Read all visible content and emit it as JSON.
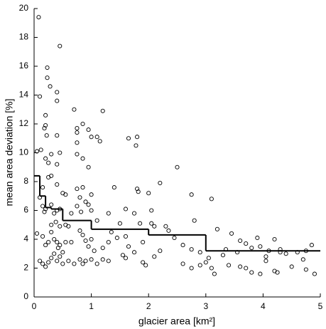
{
  "chart_data": {
    "type": "scatter",
    "xlabel": "glacier area [km²]",
    "ylabel": "mean area deviation [%]",
    "xlim": [
      0,
      5
    ],
    "xticks": [
      0,
      1,
      2,
      3,
      4,
      5
    ],
    "ylim": [
      0,
      20
    ],
    "yticks": [
      0,
      2,
      4,
      6,
      8,
      10,
      12,
      14,
      16,
      18,
      20
    ],
    "series": [
      {
        "type": "scatter",
        "color": "#000000",
        "x": [
          0.08,
          0.45,
          0.23,
          0.23,
          0.28,
          0.4,
          0.4,
          0.1,
          0.2,
          0.7,
          1.2,
          0.2,
          0.18,
          0.22,
          0.4,
          0.85,
          0.75,
          0.75,
          0.95,
          1.0,
          1.1,
          1.65,
          1.8,
          1.78,
          0.05,
          0.12,
          0.3,
          0.2,
          0.25,
          0.4,
          0.45,
          0.75,
          0.85,
          0.95,
          0.75,
          1.15,
          2.5,
          0.25,
          0.3,
          0.15,
          0.4,
          0.5,
          0.55,
          0.75,
          0.85,
          1.0,
          1.4,
          1.8,
          1.82,
          2.2,
          2.0,
          2.75,
          3.1,
          0.1,
          0.15,
          0.2,
          0.18,
          0.3,
          0.35,
          0.4,
          0.45,
          0.3,
          0.38,
          0.45,
          0.55,
          0.6,
          0.65,
          0.75,
          0.8,
          0.82,
          0.9,
          0.95,
          1.0,
          1.1,
          1.3,
          1.5,
          1.6,
          1.75,
          1.85,
          2.05,
          2.1,
          2.3,
          2.8,
          2.05,
          0.05,
          0.15,
          0.2,
          0.25,
          0.3,
          0.35,
          0.4,
          0.42,
          0.45,
          0.5,
          0.55,
          0.65,
          0.8,
          0.85,
          0.9,
          0.95,
          1.0,
          1.05,
          1.2,
          1.3,
          1.35,
          1.45,
          1.6,
          1.65,
          1.75,
          1.9,
          2.2,
          2.35,
          2.45,
          2.6,
          2.75,
          2.9,
          3.05,
          3.2,
          3.35,
          3.55,
          3.6,
          3.7,
          3.8,
          3.9,
          3.95,
          4.1,
          4.2,
          4.3,
          4.4,
          4.6,
          4.75,
          4.85,
          0.1,
          0.15,
          0.2,
          0.25,
          0.3,
          0.35,
          0.4,
          0.45,
          0.5,
          0.8,
          0.85,
          0.9,
          1.0,
          1.1,
          1.2,
          1.3,
          1.55,
          1.6,
          1.9,
          1.95,
          2.1,
          2.6,
          2.75,
          2.9,
          3.0,
          3.1,
          3.15,
          3.4,
          3.6,
          3.7,
          3.8,
          3.95,
          4.05,
          4.2,
          4.25,
          4.5,
          4.7,
          4.75,
          4.9,
          3.45,
          4.05,
          4.3,
          3.3,
          0.6,
          0.7
        ],
        "values": [
          19.4,
          17.4,
          15.9,
          15.2,
          14.6,
          14.2,
          13.6,
          13.9,
          12.6,
          13.0,
          12.9,
          11.9,
          11.7,
          11.2,
          11.2,
          12.0,
          11.7,
          11.4,
          11.6,
          11.1,
          11.1,
          11.0,
          11.1,
          10.5,
          10.1,
          10.2,
          9.9,
          9.6,
          9.3,
          9.2,
          10.0,
          9.9,
          9.6,
          9.0,
          10.7,
          10.8,
          9.0,
          8.3,
          8.4,
          7.6,
          7.8,
          7.2,
          7.1,
          7.5,
          7.6,
          7.1,
          7.6,
          7.5,
          7.3,
          7.9,
          7.2,
          7.1,
          6.8,
          6.9,
          6.3,
          6.1,
          5.9,
          6.4,
          5.8,
          6.0,
          6.1,
          5.0,
          5.2,
          4.9,
          5.0,
          4.9,
          5.8,
          6.3,
          6.9,
          5.9,
          6.6,
          6.4,
          6.0,
          5.3,
          5.8,
          5.1,
          6.1,
          5.8,
          5.1,
          5.1,
          4.9,
          4.9,
          5.3,
          6.0,
          4.4,
          4.2,
          3.6,
          3.8,
          4.5,
          4.0,
          3.8,
          3.4,
          3.6,
          3.1,
          3.8,
          3.8,
          4.6,
          4.3,
          3.9,
          3.5,
          4.0,
          3.2,
          3.4,
          3.8,
          4.5,
          4.1,
          4.2,
          3.5,
          3.1,
          3.8,
          3.2,
          4.6,
          4.1,
          3.6,
          3.3,
          3.1,
          2.7,
          4.7,
          3.3,
          3.1,
          3.9,
          3.7,
          3.4,
          4.1,
          3.5,
          3.2,
          4.0,
          3.3,
          3.0,
          3.1,
          3.2,
          3.6,
          2.5,
          2.3,
          2.1,
          2.4,
          2.7,
          3.0,
          2.5,
          2.8,
          2.3,
          2.6,
          2.3,
          2.5,
          2.6,
          2.3,
          2.6,
          2.5,
          2.9,
          2.7,
          2.4,
          2.2,
          2.8,
          2.3,
          2.0,
          2.2,
          2.4,
          2.0,
          1.6,
          2.2,
          2.1,
          2.0,
          1.7,
          1.6,
          2.5,
          1.8,
          1.7,
          2.1,
          2.6,
          1.9,
          1.6,
          4.4,
          2.8,
          3.1,
          2.9,
          2.5,
          2.3
        ]
      },
      {
        "type": "step",
        "color": "#000000",
        "bins": [
          0,
          0.1,
          0.2,
          0.3,
          0.5,
          1,
          2,
          3,
          5
        ],
        "values": [
          8.4,
          7.0,
          6.2,
          6.1,
          5.3,
          4.7,
          4.3,
          3.2
        ]
      }
    ]
  }
}
